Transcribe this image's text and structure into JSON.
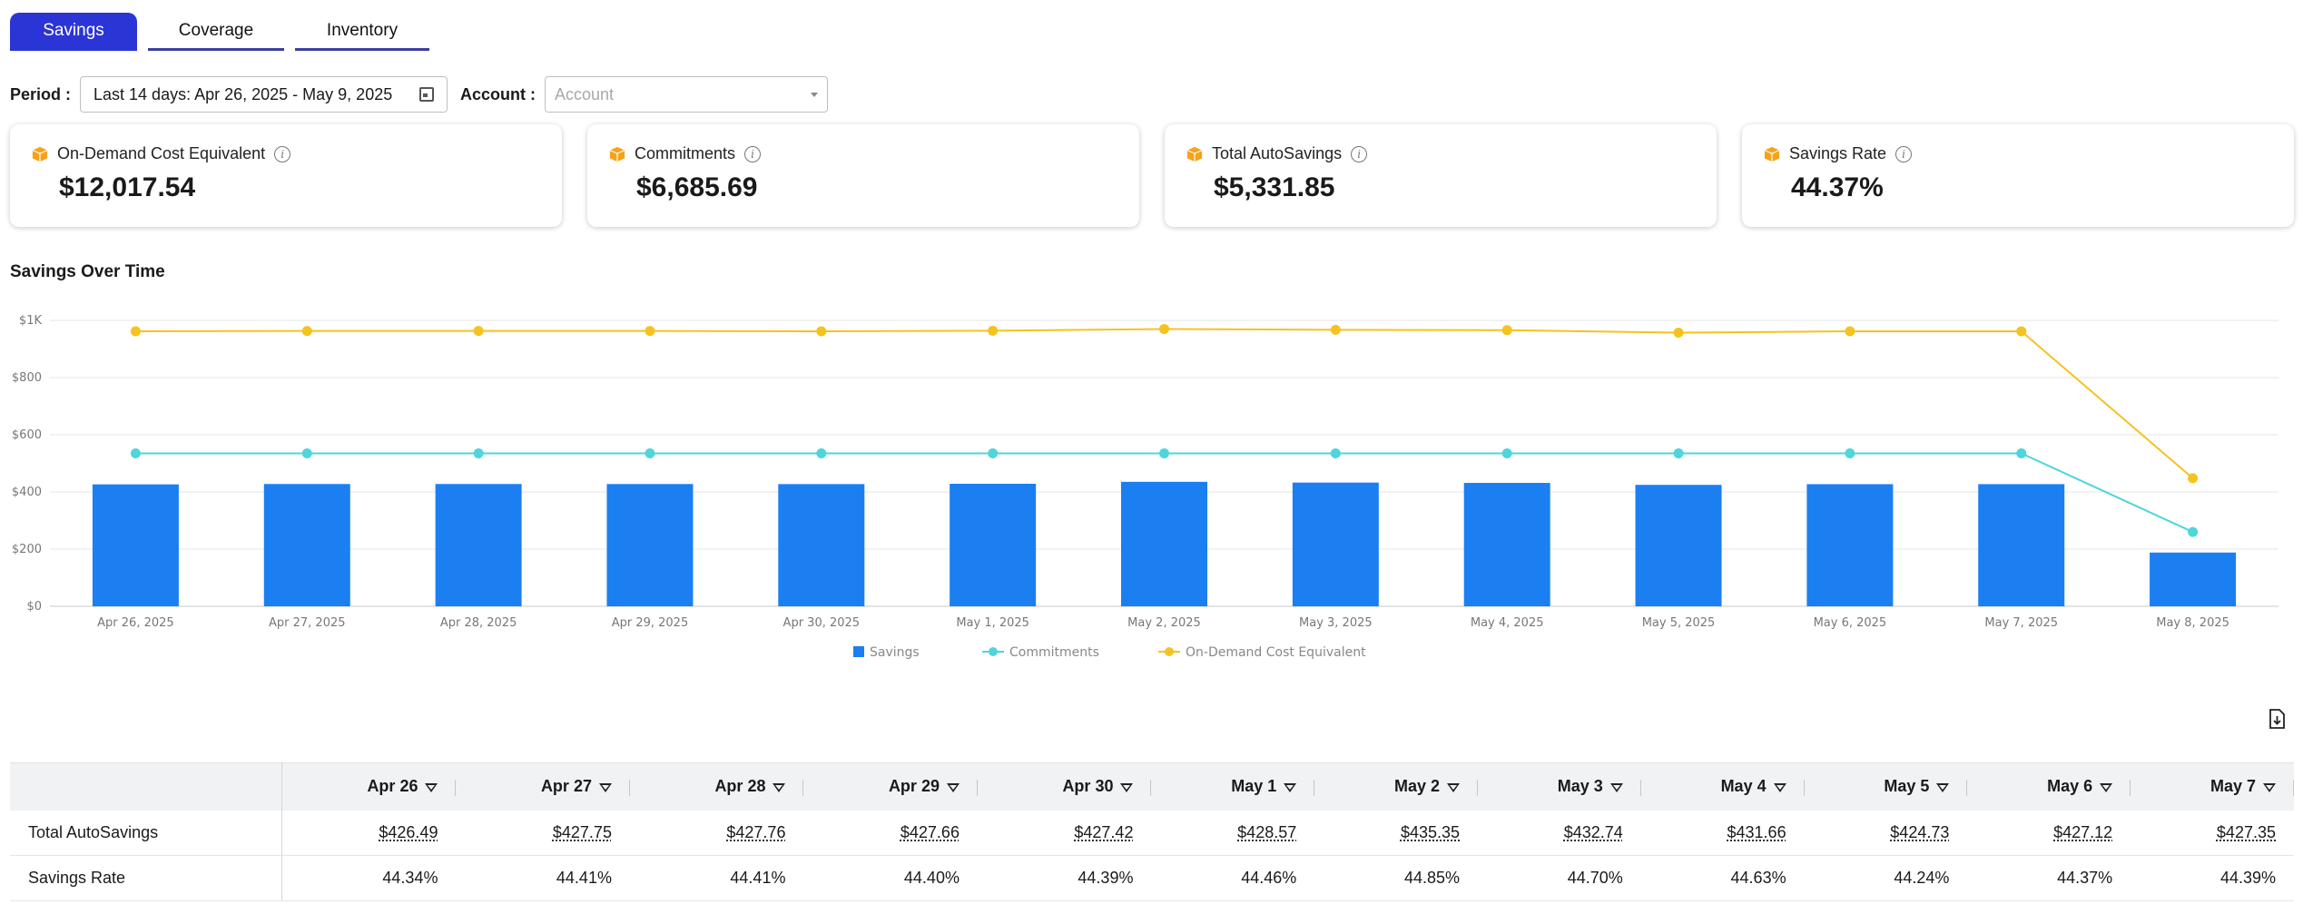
{
  "tabs": [
    "Savings",
    "Coverage",
    "Inventory"
  ],
  "filters": {
    "period_label": "Period :",
    "period_value": "Last 14 days: Apr 26, 2025 - May 9, 2025",
    "account_label": "Account :",
    "account_placeholder": "Account"
  },
  "cards": [
    {
      "label": "On-Demand Cost Equivalent",
      "value": "$12,017.54"
    },
    {
      "label": "Commitments",
      "value": "$6,685.69"
    },
    {
      "label": "Total AutoSavings",
      "value": "$5,331.85"
    },
    {
      "label": "Savings Rate",
      "value": "44.37%"
    }
  ],
  "chart_title": "Savings Over Time",
  "colors": {
    "savings": "#1b7ff2",
    "commitments": "#4fd5dc",
    "on_demand": "#f5c31f",
    "tab_active": "#2b35d6"
  },
  "chart_data": {
    "type": "bar",
    "categories": [
      "Apr 26, 2025",
      "Apr 27, 2025",
      "Apr 28, 2025",
      "Apr 29, 2025",
      "Apr 30, 2025",
      "May 1, 2025",
      "May 2, 2025",
      "May 3, 2025",
      "May 4, 2025",
      "May 5, 2025",
      "May 6, 2025",
      "May 7, 2025",
      "May 8, 2025"
    ],
    "series": [
      {
        "name": "Savings",
        "type": "bar",
        "values": [
          426.49,
          427.75,
          427.76,
          427.66,
          427.42,
          428.57,
          435.35,
          432.74,
          431.66,
          424.73,
          427.12,
          427.35,
          188
        ]
      },
      {
        "name": "Commitments",
        "type": "line",
        "values": [
          535,
          535,
          535,
          535,
          535,
          535,
          535,
          535,
          535,
          535,
          535,
          535,
          260
        ]
      },
      {
        "name": "On-Demand Cost Equivalent",
        "type": "line",
        "values": [
          962,
          963,
          963,
          963,
          962,
          964,
          970,
          967,
          966,
          957,
          962,
          962,
          448
        ]
      }
    ],
    "yticks": [
      "$0",
      "$200",
      "$400",
      "$600",
      "$800",
      "$1K"
    ],
    "ylim": [
      0,
      1000
    ],
    "legend": [
      "Savings",
      "Commitments",
      "On-Demand Cost Equivalent"
    ],
    "legend_position": "bottom"
  },
  "table": {
    "columns": [
      "Apr 26",
      "Apr 27",
      "Apr 28",
      "Apr 29",
      "Apr 30",
      "May 1",
      "May 2",
      "May 3",
      "May 4",
      "May 5",
      "May 6",
      "May 7"
    ],
    "rows": [
      {
        "label": "Total AutoSavings",
        "values": [
          "$426.49",
          "$427.75",
          "$427.76",
          "$427.66",
          "$427.42",
          "$428.57",
          "$435.35",
          "$432.74",
          "$431.66",
          "$424.73",
          "$427.12",
          "$427.35"
        ]
      },
      {
        "label": "Savings Rate",
        "values": [
          "44.34%",
          "44.41%",
          "44.41%",
          "44.40%",
          "44.39%",
          "44.46%",
          "44.85%",
          "44.70%",
          "44.63%",
          "44.24%",
          "44.37%",
          "44.39%"
        ]
      }
    ]
  }
}
